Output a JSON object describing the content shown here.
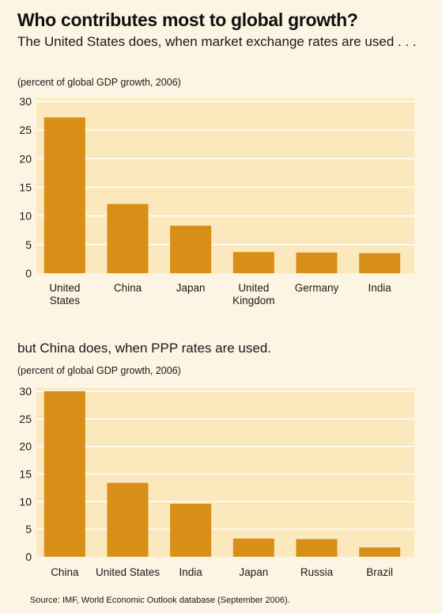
{
  "title": "Who contributes most to global growth?",
  "source": "Source: IMF, World Economic Outlook database (September 2006).",
  "colors": {
    "bar": "#d78f17",
    "plot_bg": "#fbe8bd",
    "frame_bg": "#fdf5e3",
    "grid": "#ffffff"
  },
  "chart_data": [
    {
      "type": "bar",
      "subtitle": "The United States does, when market exchange rates are used . . .",
      "unit_note": "(percent of global GDP growth, 2006)",
      "categories": [
        [
          "United",
          "States"
        ],
        [
          "China"
        ],
        [
          "Japan"
        ],
        [
          "United",
          "Kingdom"
        ],
        [
          "Germany"
        ],
        [
          "India"
        ]
      ],
      "values": [
        27.2,
        12.1,
        8.3,
        3.7,
        3.6,
        3.5
      ],
      "yticks": [
        "0",
        "5",
        "10",
        "15",
        "20",
        "25",
        "30"
      ],
      "ylim": [
        0,
        30
      ],
      "grid": true
    },
    {
      "type": "bar",
      "subtitle": "but China does, when PPP rates are used.",
      "unit_note": "(percent of global GDP growth, 2006)",
      "categories": [
        [
          "China"
        ],
        [
          "United States"
        ],
        [
          "India"
        ],
        [
          "Japan"
        ],
        [
          "Russia"
        ],
        [
          "Brazil"
        ]
      ],
      "values": [
        30.0,
        13.4,
        9.6,
        3.3,
        3.2,
        1.7
      ],
      "yticks": [
        "0",
        "5",
        "10",
        "15",
        "20",
        "25",
        "30"
      ],
      "ylim": [
        0,
        30
      ],
      "grid": true
    }
  ]
}
